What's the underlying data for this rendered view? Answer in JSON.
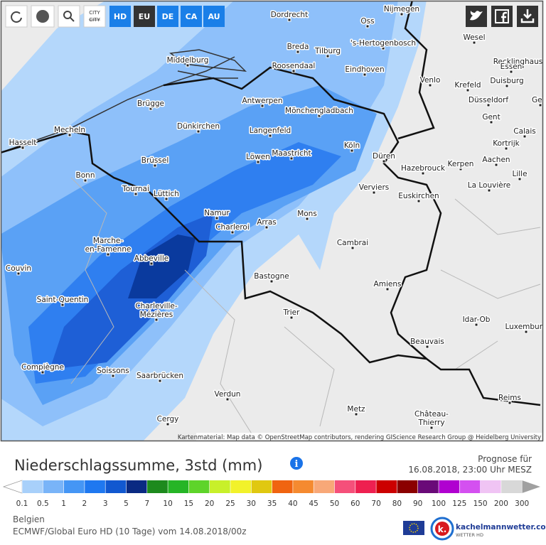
{
  "toolbar": {
    "city": "CITY",
    "regions": [
      "HD",
      "EU",
      "DE",
      "CA",
      "AU"
    ]
  },
  "map": {
    "cities": [
      "Dordrecht",
      "Nijmegen",
      "Oss",
      "Wesel",
      "Recklinghausen",
      "Middelburg",
      "Breda",
      "Tilburg",
      "'s-Hertogenbosch",
      "Roosendaal",
      "Eindhoven",
      "Venlo",
      "Essen",
      "Krefeld",
      "Duisburg",
      "Brügge",
      "Antwerpen",
      "Düsseldorf",
      "Geel",
      "Mönchengladbach",
      "Gent",
      "Dünkirchen",
      "Mecheln",
      "Langenfeld",
      "Calais",
      "Hasselt",
      "Köln",
      "Kortrijk",
      "Brüssel",
      "Löwen",
      "Maastricht",
      "Düren",
      "Kerpen",
      "Aachen",
      "Hazebrouck",
      "Bonn",
      "Lille",
      "Tournai",
      "Lüttich",
      "Verviers",
      "Euskirchen",
      "La Louvière",
      "Namur",
      "Mons",
      "Charleroi",
      "Arras",
      [
        "Marche-",
        "en-Famenne"
      ],
      "Cambrai",
      "Abbeville",
      "Couvin",
      "Bastogne",
      "Amiens",
      "Saint-Quentin",
      [
        "Charleville-",
        "Mézières"
      ],
      "Trier",
      "Idar-Ob",
      "Luxemburg",
      "Beauvais",
      "Compiègne",
      "Soissons",
      "Saarbrücken",
      "Reims",
      "Verdun",
      "Metz",
      [
        "Château-",
        "Thierry"
      ],
      "Cergy"
    ],
    "attribution": "Kartenmaterial: Map data © OpenStreetMap contributors, rendering GIScience Research Group @ Heidelberg University"
  },
  "legend_panel": {
    "title": "Niederschlagssumme, 3std (mm)",
    "forecast_label": "Prognose für",
    "forecast_time": "16.08.2018, 23:00 Uhr MESZ",
    "scale": {
      "labels": [
        0.1,
        0.5,
        1,
        2,
        3,
        5,
        7,
        10,
        15,
        20,
        25,
        30,
        35,
        40,
        45,
        50,
        60,
        70,
        80,
        90,
        100,
        125,
        150,
        200,
        300
      ],
      "colors": [
        "#a8d0fa",
        "#79b4f8",
        "#4596f5",
        "#1f78f0",
        "#1158d0",
        "#0a2a82",
        "#1d8a1d",
        "#26b526",
        "#5ed42a",
        "#c8f02a",
        "#f2f22a",
        "#e0c810",
        "#f06410",
        "#f58a30",
        "#f8a878",
        "#f5507a",
        "#ee2050",
        "#cc0000",
        "#8b0000",
        "#6a0a78",
        "#b000d0",
        "#d450f0",
        "#f0c4f4",
        "#d8d8d8"
      ],
      "under_color": "#ffffff",
      "over_color": "#a0a0a0"
    },
    "region": "Belgien",
    "model": "ECMWF/Global Euro HD (10 Tage) vom 14.08.2018/00z"
  },
  "branding": {
    "logo_letter": "k.",
    "name": "kachelmannwetter.com",
    "tagline": "WETTER HD"
  }
}
